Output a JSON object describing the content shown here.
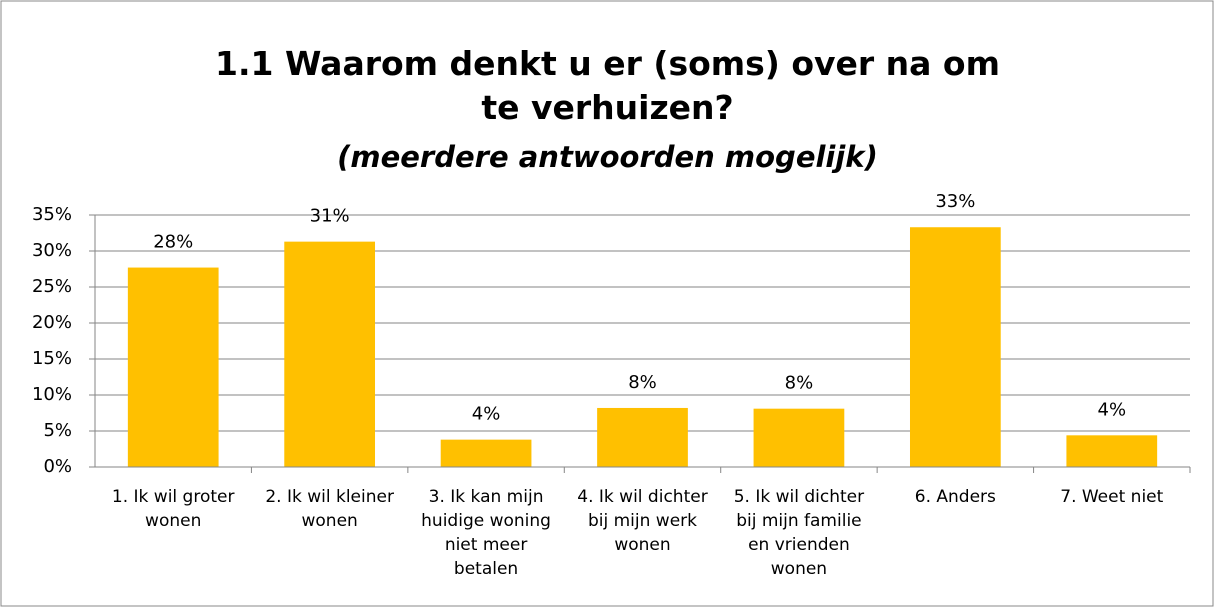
{
  "chart_data": {
    "type": "bar",
    "title": "1.1 Waarom denkt u er (soms) over na om te verhuizen?",
    "subtitle": "(meerdere antwoorden mogelijk)",
    "categories": [
      "1. Ik wil groter wonen",
      "2. Ik wil kleiner wonen",
      "3. Ik kan mijn huidige woning niet meer betalen",
      "4. Ik wil dichter bij mijn werk wonen",
      "5. Ik wil dichter bij mijn familie en vrienden wonen",
      "6. Anders",
      "7. Weet niet"
    ],
    "values": [
      27.7,
      31.3,
      3.8,
      8.2,
      8.1,
      33.3,
      4.4
    ],
    "value_labels": [
      "28%",
      "31%",
      "4%",
      "8%",
      "8%",
      "33%",
      "4%"
    ],
    "color": "#ffc000",
    "ylim": [
      0,
      35
    ],
    "yticks": [
      {
        "value": 0,
        "label": "0%"
      },
      {
        "value": 5,
        "label": "5%"
      },
      {
        "value": 10,
        "label": "10%"
      },
      {
        "value": 15,
        "label": "15%"
      },
      {
        "value": 20,
        "label": "20%"
      },
      {
        "value": 25,
        "label": "25%"
      },
      {
        "value": 30,
        "label": "30%"
      },
      {
        "value": 35,
        "label": "35%"
      }
    ],
    "grid": true
  }
}
